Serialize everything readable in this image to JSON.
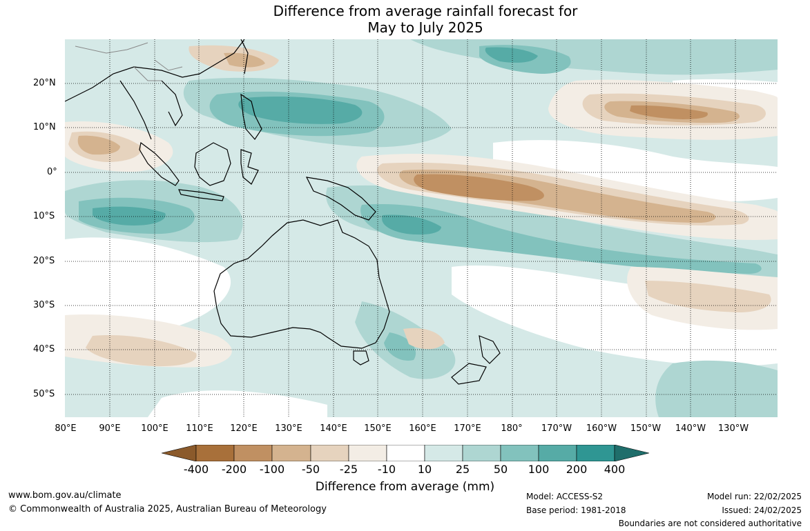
{
  "title_line1": "Difference from average rainfall forecast for",
  "title_line2": "May to July 2025",
  "lat_labels": [
    "20°N",
    "10°N",
    "0°",
    "10°S",
    "20°S",
    "30°S",
    "40°S",
    "50°S"
  ],
  "lon_labels": [
    "80°E",
    "90°E",
    "100°E",
    "110°E",
    "120°E",
    "130°E",
    "140°E",
    "150°E",
    "160°E",
    "170°E",
    "180°",
    "170°W",
    "160°W",
    "150°W",
    "140°W",
    "130°W"
  ],
  "legend": {
    "ticks": [
      "-400",
      "-200",
      "-100",
      "-50",
      "-25",
      "-10",
      "10",
      "25",
      "50",
      "100",
      "200",
      "400"
    ],
    "colors": [
      "#8b5a2b",
      "#a8703a",
      "#c09062",
      "#d4b38f",
      "#e6d3be",
      "#f3ede5",
      "#ffffff",
      "#d5e9e7",
      "#aed6d2",
      "#82c2bd",
      "#56aba6",
      "#2f9693",
      "#1f6e6b"
    ],
    "title": "Difference from average (mm)"
  },
  "footer": {
    "website": "www.bom.gov.au/climate",
    "copyright": "© Commonwealth of Australia 2025, Australian Bureau of Meteorology",
    "model": "Model: ACCESS-S2",
    "base_period": "Base period: 1981-2018",
    "model_run": "Model run: 22/02/2025",
    "issued": "Issued: 24/02/2025",
    "disclaimer": "Boundaries are not considered authoritative"
  }
}
